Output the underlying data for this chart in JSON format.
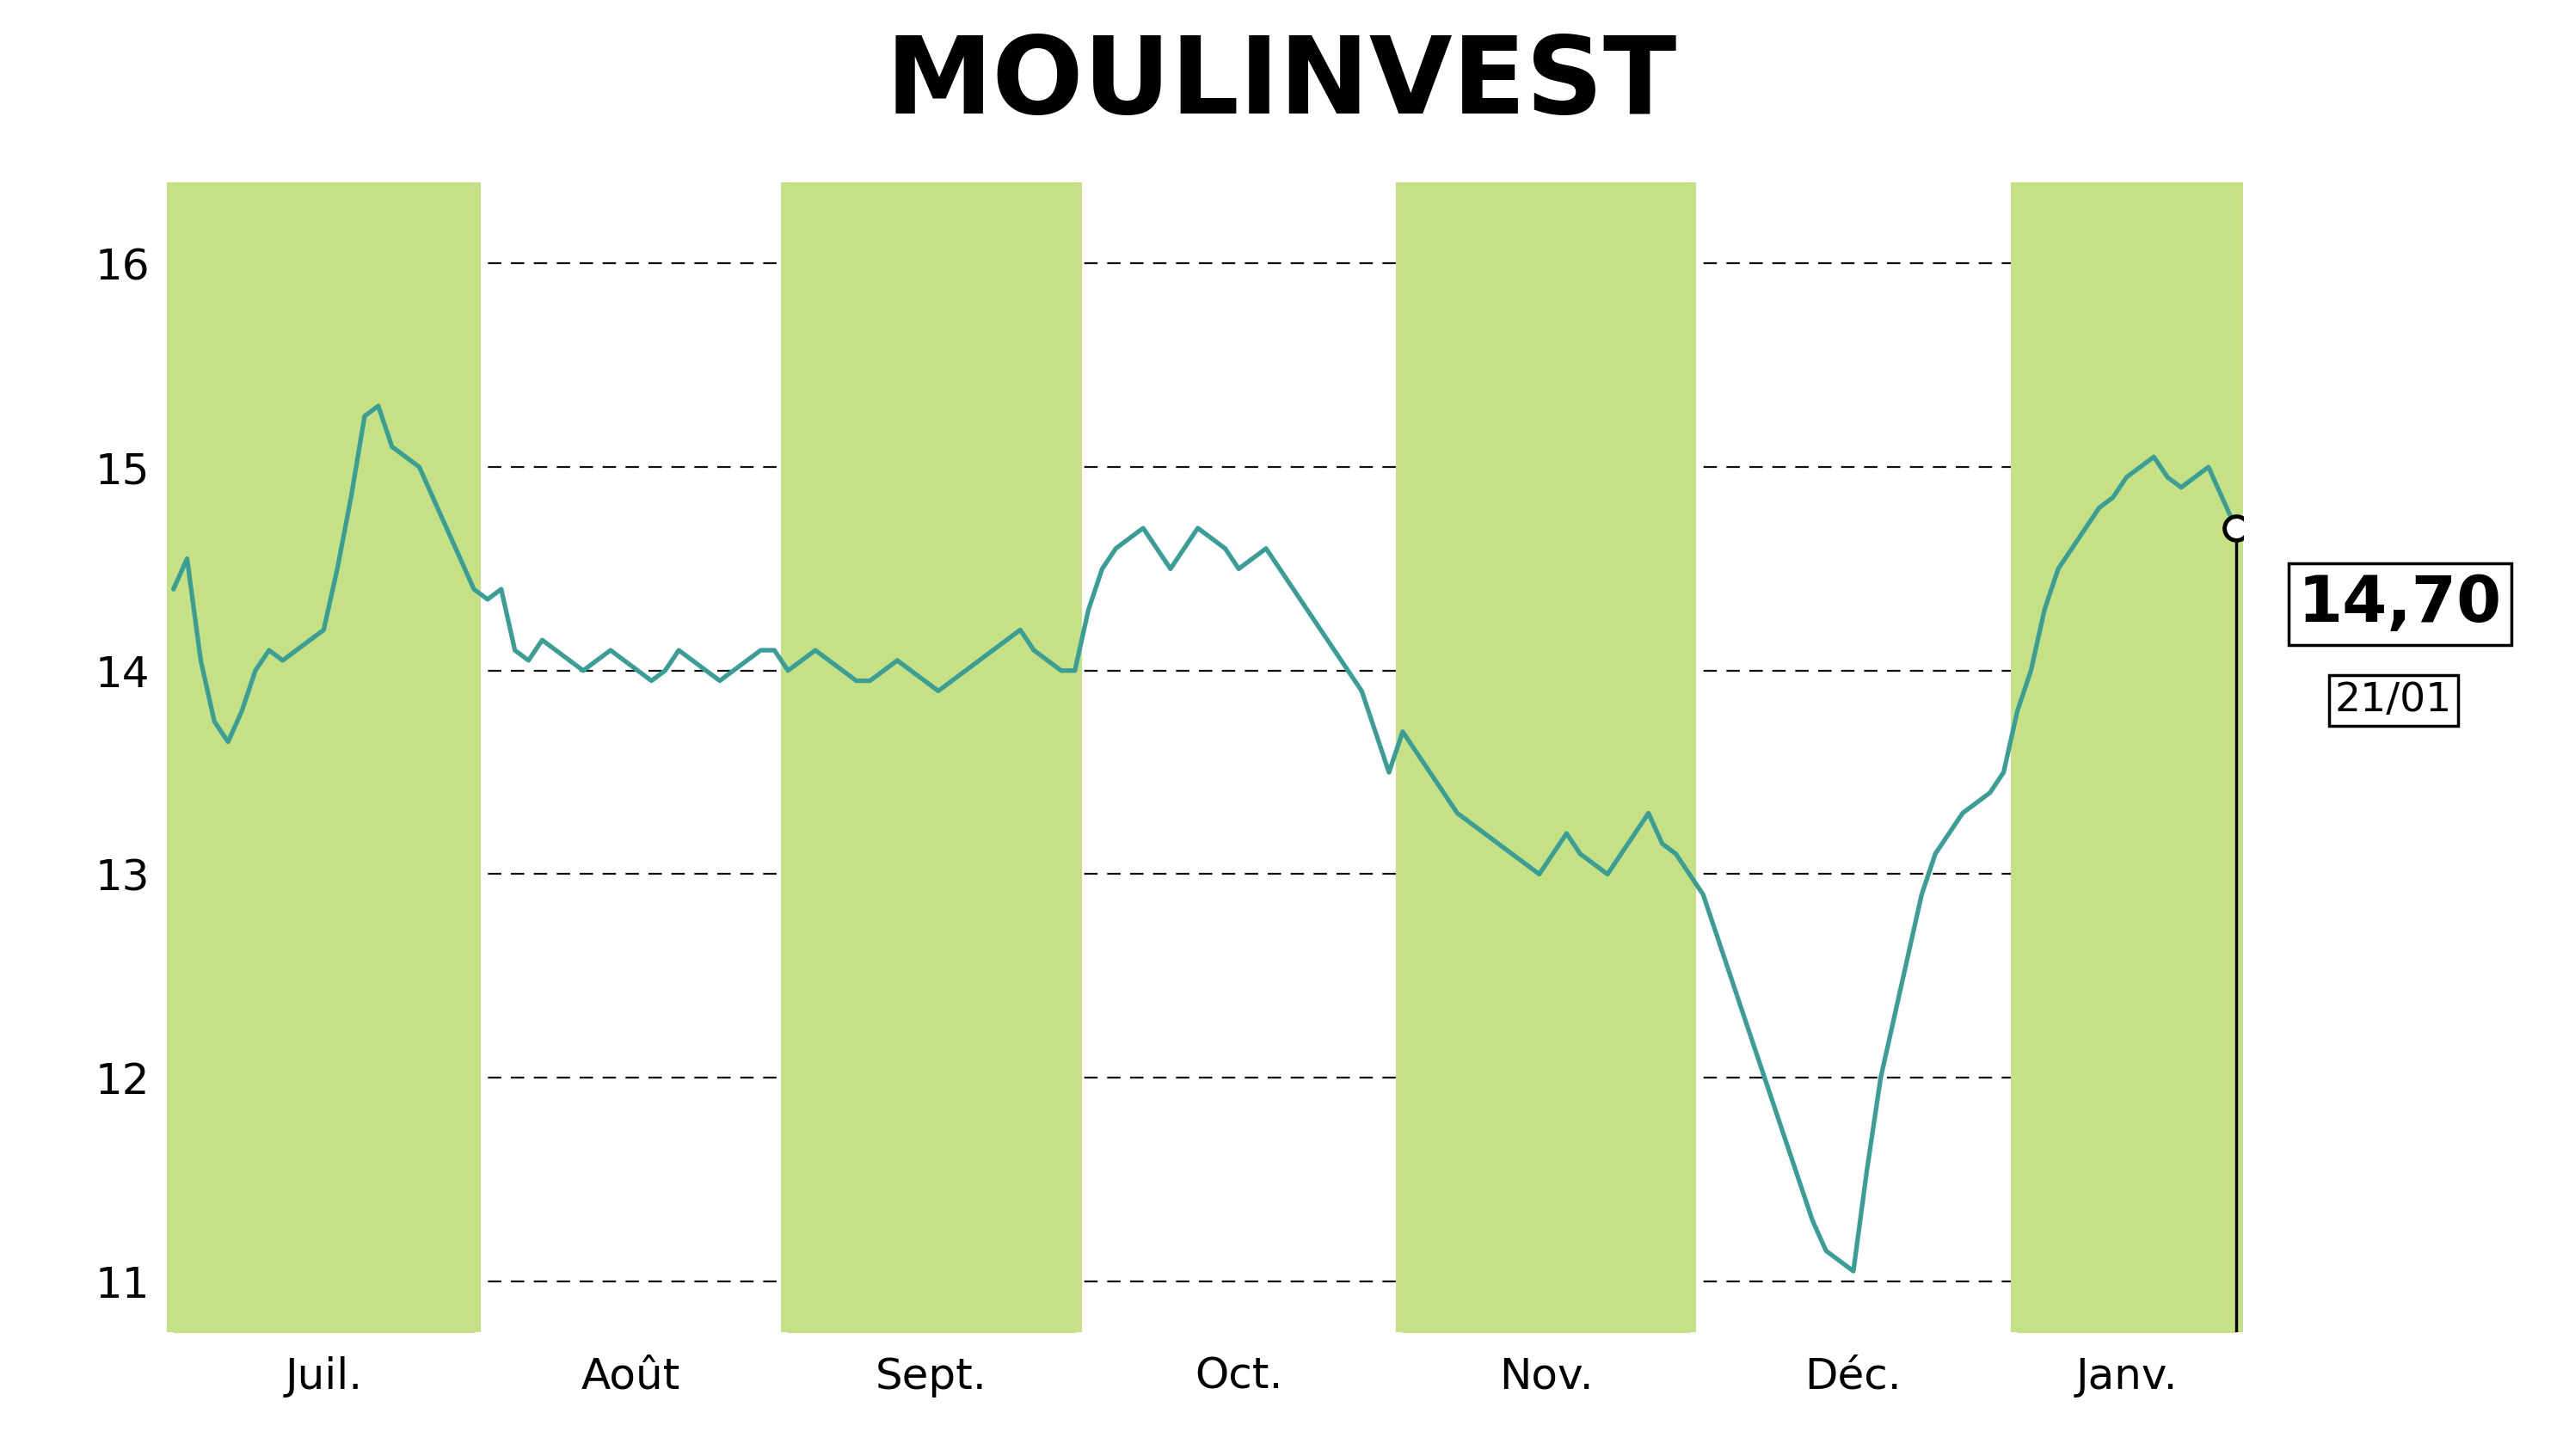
{
  "title": "MOULINVEST",
  "title_bg_color": "#cde88a",
  "line_color": "#3a9e96",
  "fill_color": "#c5e085",
  "bg_color": "#ffffff",
  "last_price": "14,70",
  "last_date": "21/01",
  "ylim_low": 10.75,
  "ylim_high": 16.4,
  "yticks": [
    11,
    12,
    13,
    14,
    15,
    16
  ],
  "month_labels": [
    "Juil.",
    "Août",
    "Sept.",
    "Oct.",
    "Nov.",
    "Déc.",
    "Janv."
  ],
  "shaded_months": [
    0,
    2,
    4,
    6
  ],
  "july": [
    14.4,
    14.55,
    14.05,
    13.75,
    13.65,
    13.8,
    14.0,
    14.1,
    14.05,
    14.1,
    14.15,
    14.2,
    14.5,
    14.85,
    15.25,
    15.3,
    15.1,
    15.05,
    15.0,
    14.85,
    14.7,
    14.55,
    14.4
  ],
  "aug": [
    14.35,
    14.4,
    14.1,
    14.05,
    14.15,
    14.1,
    14.05,
    14.0,
    14.05,
    14.1,
    14.05,
    14.0,
    13.95,
    14.0,
    14.1,
    14.05,
    14.0,
    13.95,
    14.0,
    14.05,
    14.1,
    14.1
  ],
  "sept": [
    14.0,
    14.05,
    14.1,
    14.05,
    14.0,
    13.95,
    13.95,
    14.0,
    14.05,
    14.0,
    13.95,
    13.9,
    13.95,
    14.0,
    14.05,
    14.1,
    14.15,
    14.2,
    14.1,
    14.05,
    14.0,
    14.0
  ],
  "oct": [
    14.3,
    14.5,
    14.6,
    14.65,
    14.7,
    14.6,
    14.5,
    14.6,
    14.7,
    14.65,
    14.6,
    14.5,
    14.55,
    14.6,
    14.5,
    14.4,
    14.3,
    14.2,
    14.1,
    14.0,
    13.9,
    13.7,
    13.5
  ],
  "nov": [
    13.7,
    13.6,
    13.5,
    13.4,
    13.3,
    13.25,
    13.2,
    13.15,
    13.1,
    13.05,
    13.0,
    13.1,
    13.2,
    13.1,
    13.05,
    13.0,
    13.1,
    13.2,
    13.3,
    13.15,
    13.1,
    13.0
  ],
  "dec": [
    12.9,
    12.7,
    12.5,
    12.3,
    12.1,
    11.9,
    11.7,
    11.5,
    11.3,
    11.15,
    11.1,
    11.05,
    11.55,
    12.0,
    12.3,
    12.6,
    12.9,
    13.1,
    13.2,
    13.3,
    13.35,
    13.4,
    13.5
  ],
  "jan": [
    13.8,
    14.0,
    14.3,
    14.5,
    14.6,
    14.7,
    14.8,
    14.85,
    14.95,
    15.0,
    15.05,
    14.95,
    14.9,
    14.95,
    15.0,
    14.85,
    14.7
  ]
}
